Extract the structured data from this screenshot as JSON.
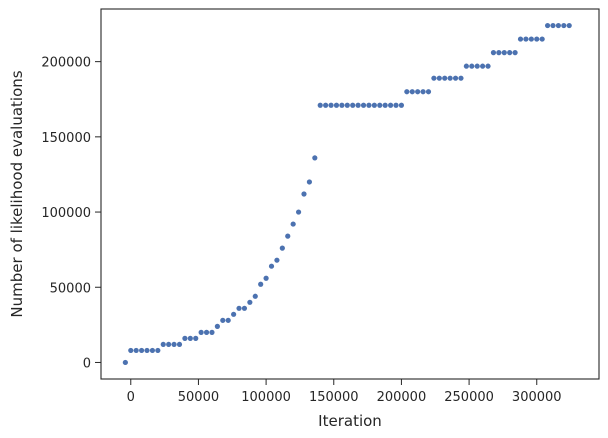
{
  "chart_data": {
    "type": "scatter",
    "title": "",
    "xlabel": "Iteration",
    "ylabel": "Number of likelihood evaluations",
    "xlim": [
      -22000,
      346000
    ],
    "ylim": [
      -11000,
      235000
    ],
    "xticks": [
      0,
      50000,
      100000,
      150000,
      200000,
      250000,
      300000
    ],
    "xtick_labels": [
      "0",
      "50000",
      "100000",
      "150000",
      "200000",
      "250000",
      "300000"
    ],
    "yticks": [
      0,
      50000,
      100000,
      150000,
      200000
    ],
    "ytick_labels": [
      "0",
      "50000",
      "100000",
      "150000",
      "200000"
    ],
    "grid": false,
    "marker_color": "#4c72b0",
    "points": [
      [
        -4000,
        0
      ],
      [
        0,
        8000
      ],
      [
        4000,
        8000
      ],
      [
        8000,
        8000
      ],
      [
        12000,
        8000
      ],
      [
        16000,
        8000
      ],
      [
        20000,
        8000
      ],
      [
        24000,
        12000
      ],
      [
        28000,
        12000
      ],
      [
        32000,
        12000
      ],
      [
        36000,
        12000
      ],
      [
        40000,
        16000
      ],
      [
        44000,
        16000
      ],
      [
        48000,
        16000
      ],
      [
        52000,
        20000
      ],
      [
        56000,
        20000
      ],
      [
        60000,
        20000
      ],
      [
        64000,
        24000
      ],
      [
        68000,
        28000
      ],
      [
        72000,
        28000
      ],
      [
        76000,
        32000
      ],
      [
        80000,
        36000
      ],
      [
        84000,
        36000
      ],
      [
        88000,
        40000
      ],
      [
        92000,
        44000
      ],
      [
        96000,
        52000
      ],
      [
        100000,
        56000
      ],
      [
        104000,
        64000
      ],
      [
        108000,
        68000
      ],
      [
        112000,
        76000
      ],
      [
        116000,
        84000
      ],
      [
        120000,
        92000
      ],
      [
        124000,
        100000
      ],
      [
        128000,
        112000
      ],
      [
        132000,
        120000
      ],
      [
        136000,
        136000
      ],
      [
        140000,
        171000
      ],
      [
        144000,
        171000
      ],
      [
        148000,
        171000
      ],
      [
        152000,
        171000
      ],
      [
        156000,
        171000
      ],
      [
        160000,
        171000
      ],
      [
        164000,
        171000
      ],
      [
        168000,
        171000
      ],
      [
        172000,
        171000
      ],
      [
        176000,
        171000
      ],
      [
        180000,
        171000
      ],
      [
        184000,
        171000
      ],
      [
        188000,
        171000
      ],
      [
        192000,
        171000
      ],
      [
        196000,
        171000
      ],
      [
        200000,
        171000
      ],
      [
        204000,
        180000
      ],
      [
        208000,
        180000
      ],
      [
        212000,
        180000
      ],
      [
        216000,
        180000
      ],
      [
        220000,
        180000
      ],
      [
        224000,
        189000
      ],
      [
        228000,
        189000
      ],
      [
        232000,
        189000
      ],
      [
        236000,
        189000
      ],
      [
        240000,
        189000
      ],
      [
        244000,
        189000
      ],
      [
        248000,
        197000
      ],
      [
        252000,
        197000
      ],
      [
        256000,
        197000
      ],
      [
        260000,
        197000
      ],
      [
        264000,
        197000
      ],
      [
        268000,
        206000
      ],
      [
        272000,
        206000
      ],
      [
        276000,
        206000
      ],
      [
        280000,
        206000
      ],
      [
        284000,
        206000
      ],
      [
        288000,
        215000
      ],
      [
        292000,
        215000
      ],
      [
        296000,
        215000
      ],
      [
        300000,
        215000
      ],
      [
        304000,
        215000
      ],
      [
        308000,
        224000
      ],
      [
        312000,
        224000
      ],
      [
        316000,
        224000
      ],
      [
        320000,
        224000
      ],
      [
        324000,
        224000
      ]
    ]
  }
}
